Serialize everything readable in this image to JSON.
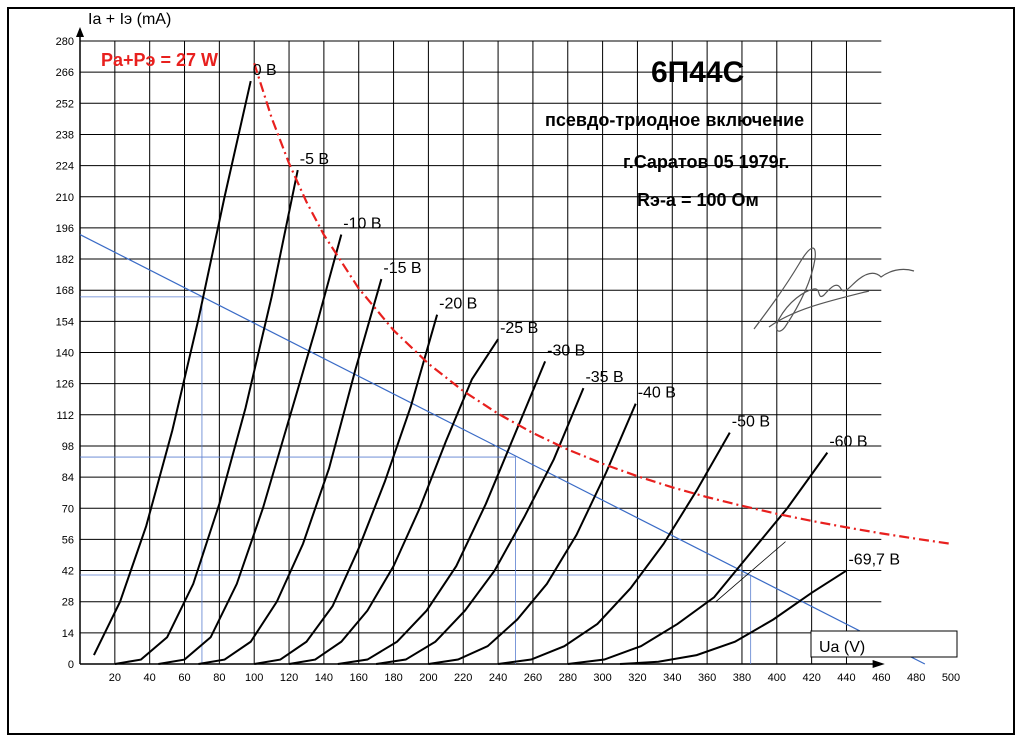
{
  "chart_data": {
    "type": "line",
    "title": "6П44С",
    "annotations": [
      "псевдо-триодное включение",
      "г.Саратов 05 1979г.",
      "Rэ-а = 100 Ом"
    ],
    "power_label": "Pa+Pэ = 27 W",
    "power_color": "#e8201e",
    "xlabel": "Ua (V)",
    "ylabel": "Ia + Iэ (mA)",
    "xlim": [
      0,
      500
    ],
    "ylim": [
      0,
      280
    ],
    "x_ticks": [
      20,
      40,
      60,
      80,
      100,
      120,
      140,
      160,
      180,
      200,
      220,
      240,
      260,
      280,
      300,
      320,
      340,
      360,
      380,
      400,
      420,
      440,
      460,
      480,
      500
    ],
    "x_tick_labels": [
      "20",
      "40",
      "60",
      "80",
      "100",
      "120",
      "140",
      "160",
      "180",
      "200",
      "220",
      "240",
      "260",
      "280",
      "300",
      "320",
      "340",
      "360",
      "380",
      "400",
      "420",
      "440",
      "460",
      "480",
      "500"
    ],
    "y_ticks": [
      0,
      14,
      28,
      42,
      56,
      70,
      84,
      98,
      112,
      126,
      140,
      154,
      168,
      182,
      196,
      210,
      224,
      238,
      252,
      266,
      280
    ],
    "y_tick_labels": [
      "0",
      "14",
      "28",
      "42",
      "56",
      "70",
      "84",
      "98",
      "112",
      "126",
      "140",
      "154",
      "168",
      "182",
      "196",
      "210",
      "224",
      "238",
      "252",
      "266",
      "280"
    ],
    "grid": true,
    "series": [
      {
        "name": "0 В",
        "x": [
          8,
          23,
          38,
          53,
          68,
          83,
          98
        ],
        "y": [
          4,
          28,
          62,
          105,
          155,
          210,
          262
        ]
      },
      {
        "name": "-5 В",
        "x": [
          20,
          35,
          50,
          65,
          80,
          95,
          110,
          125
        ],
        "y": [
          0,
          2,
          12,
          36,
          72,
          115,
          165,
          222
        ]
      },
      {
        "name": "-10 В",
        "x": [
          45,
          60,
          75,
          90,
          105,
          120,
          135,
          150
        ],
        "y": [
          0,
          2,
          12,
          36,
          70,
          110,
          150,
          193
        ]
      },
      {
        "name": "-15 В",
        "x": [
          68,
          83,
          98,
          113,
          128,
          143,
          158,
          173
        ],
        "y": [
          0,
          2,
          10,
          28,
          54,
          88,
          132,
          173
        ]
      },
      {
        "name": "-20 В",
        "x": [
          100,
          115,
          130,
          145,
          160,
          175,
          190,
          205
        ],
        "y": [
          0,
          2,
          10,
          26,
          52,
          82,
          116,
          157
        ]
      },
      {
        "name": "-25 В",
        "x": [
          120,
          135,
          150,
          165,
          180,
          195,
          210,
          225,
          240
        ],
        "y": [
          0,
          2,
          10,
          24,
          44,
          70,
          100,
          128,
          146
        ]
      },
      {
        "name": "-30 В",
        "x": [
          148,
          165,
          182,
          199,
          216,
          233,
          250,
          267
        ],
        "y": [
          0,
          2,
          10,
          24,
          44,
          72,
          104,
          136
        ]
      },
      {
        "name": "-35 В",
        "x": [
          170,
          187,
          204,
          221,
          238,
          255,
          272,
          289
        ],
        "y": [
          0,
          2,
          10,
          24,
          42,
          66,
          92,
          124
        ]
      },
      {
        "name": "-40 В",
        "x": [
          200,
          217,
          234,
          251,
          268,
          285,
          302,
          319
        ],
        "y": [
          0,
          2,
          8,
          20,
          36,
          58,
          86,
          117
        ]
      },
      {
        "name": "-50 В",
        "x": [
          240,
          259,
          278,
          297,
          316,
          335,
          354,
          373
        ],
        "y": [
          0,
          2,
          8,
          18,
          34,
          54,
          78,
          104
        ]
      },
      {
        "name": "-60 В",
        "x": [
          280,
          301,
          322,
          343,
          364,
          385,
          406,
          429
        ],
        "y": [
          0,
          2,
          8,
          18,
          30,
          50,
          70,
          95
        ]
      },
      {
        "name": "-69,7 В",
        "x": [
          310,
          332,
          354,
          376,
          398,
          420,
          440
        ],
        "y": [
          0,
          1,
          4,
          10,
          20,
          32,
          42
        ]
      }
    ],
    "power_curve": {
      "x": [
        100,
        110,
        120,
        130,
        140,
        160,
        180,
        200,
        220,
        240,
        260,
        280,
        300,
        320,
        340,
        360,
        380,
        400,
        420,
        440,
        460,
        480,
        500
      ],
      "y": [
        270,
        245.5,
        225,
        207.7,
        192.9,
        168.8,
        150,
        135,
        122.7,
        112.5,
        103.8,
        96.4,
        90,
        84.4,
        79.4,
        75,
        71.1,
        67.5,
        64.3,
        61.4,
        58.7,
        56.3,
        54
      ]
    },
    "load_line": {
      "x": [
        0,
        485
      ],
      "y": [
        193,
        0
      ]
    }
  }
}
